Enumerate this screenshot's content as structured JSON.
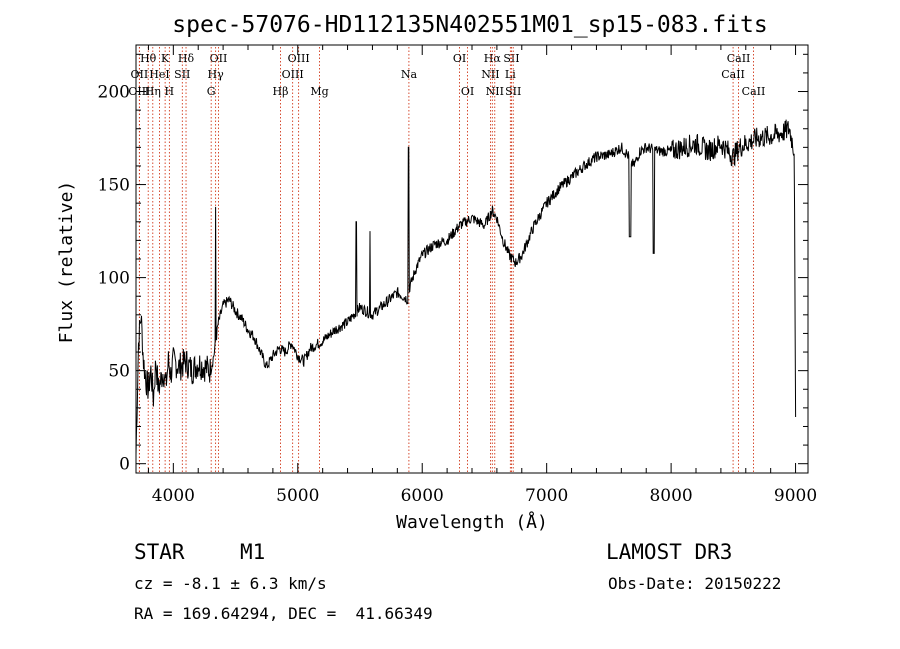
{
  "chart_data": {
    "type": "line",
    "title": "spec-57076-HD112135N402551M01_sp15-083.fits",
    "xlabel": "Wavelength (Å)",
    "ylabel": "Flux (relative)",
    "xlim": [
      3700,
      9100
    ],
    "ylim": [
      -5,
      225
    ],
    "x_ticks": [
      4000,
      5000,
      6000,
      7000,
      8000,
      9000
    ],
    "y_ticks": [
      0,
      50,
      100,
      150,
      200
    ],
    "grid": false,
    "series": [
      {
        "name": "spectrum",
        "x": [
          3700,
          3720,
          3740,
          3760,
          3780,
          3800,
          3820,
          3840,
          3860,
          3880,
          3900,
          3920,
          3940,
          3960,
          3980,
          4000,
          4050,
          4100,
          4150,
          4200,
          4250,
          4300,
          4330,
          4360,
          4380,
          4400,
          4450,
          4500,
          4550,
          4600,
          4650,
          4700,
          4750,
          4800,
          4850,
          4900,
          4950,
          5000,
          5050,
          5100,
          5150,
          5200,
          5300,
          5400,
          5450,
          5500,
          5600,
          5700,
          5800,
          5890,
          5900,
          5950,
          6000,
          6100,
          6200,
          6300,
          6400,
          6500,
          6563,
          6600,
          6650,
          6700,
          6750,
          6800,
          6900,
          7000,
          7100,
          7200,
          7300,
          7400,
          7500,
          7600,
          7650,
          7700,
          7750,
          7800,
          7900,
          8000,
          8100,
          8200,
          8300,
          8400,
          8500,
          8550,
          8600,
          8700,
          8800,
          8900,
          8950,
          8990,
          9000
        ],
        "values": [
          5,
          65,
          80,
          55,
          45,
          40,
          50,
          35,
          55,
          40,
          45,
          50,
          42,
          55,
          48,
          55,
          52,
          55,
          50,
          54,
          52,
          50,
          60,
          75,
          80,
          85,
          88,
          82,
          78,
          72,
          68,
          60,
          52,
          58,
          62,
          60,
          65,
          58,
          55,
          62,
          64,
          66,
          72,
          76,
          80,
          84,
          80,
          86,
          92,
          88,
          95,
          105,
          112,
          118,
          120,
          128,
          132,
          128,
          136,
          132,
          120,
          112,
          108,
          112,
          128,
          140,
          148,
          154,
          160,
          165,
          166,
          170,
          166,
          160,
          168,
          170,
          168,
          168,
          170,
          172,
          168,
          172,
          165,
          170,
          172,
          175,
          176,
          178,
          180,
          168,
          20
        ]
      }
    ],
    "emission_spikes": [
      {
        "x": 4340,
        "value": 138
      },
      {
        "x": 5470,
        "value": 130
      },
      {
        "x": 5580,
        "value": 125
      },
      {
        "x": 5890,
        "value": 170
      }
    ],
    "absorption_dips": [
      {
        "x": 7670,
        "value": 122
      },
      {
        "x": 7860,
        "value": 113
      }
    ],
    "spectral_lines": [
      {
        "label": "Hθ",
        "x": 3798,
        "row": 1
      },
      {
        "label": "OII",
        "x": 3727,
        "row": 2
      },
      {
        "label": "OIII",
        "x": 3727,
        "row": 3
      },
      {
        "label": "K",
        "x": 3934,
        "row": 1
      },
      {
        "label": "HeI",
        "x": 3889,
        "row": 2
      },
      {
        "label": "Hη",
        "x": 3835,
        "row": 3
      },
      {
        "label": "Hδ",
        "x": 4102,
        "row": 1
      },
      {
        "label": "SII",
        "x": 4072,
        "row": 2
      },
      {
        "label": "H",
        "x": 3968,
        "row": 3
      },
      {
        "label": "OII",
        "x": 4363,
        "row": 1
      },
      {
        "label": "Hγ",
        "x": 4340,
        "row": 2
      },
      {
        "label": "G",
        "x": 4304,
        "row": 3
      },
      {
        "label": "OIII",
        "x": 5007,
        "row": 1
      },
      {
        "label": "OIII",
        "x": 4959,
        "row": 2
      },
      {
        "label": "Hβ",
        "x": 4861,
        "row": 3
      },
      {
        "label": "Mg",
        "x": 5175,
        "row": 3
      },
      {
        "label": "Na",
        "x": 5893,
        "row": 2
      },
      {
        "label": "OI",
        "x": 6300,
        "row": 1
      },
      {
        "label": "OI",
        "x": 6364,
        "row": 3
      },
      {
        "label": "Hα",
        "x": 6563,
        "row": 1
      },
      {
        "label": "NII",
        "x": 6548,
        "row": 2
      },
      {
        "label": "NII",
        "x": 6583,
        "row": 3
      },
      {
        "label": "SII",
        "x": 6717,
        "row": 1
      },
      {
        "label": "Li",
        "x": 6708,
        "row": 2
      },
      {
        "label": "SII",
        "x": 6731,
        "row": 3
      },
      {
        "label": "CaII",
        "x": 8542,
        "row": 1
      },
      {
        "label": "CaII",
        "x": 8498,
        "row": 2
      },
      {
        "label": "CaII",
        "x": 8662,
        "row": 3
      }
    ]
  },
  "info": {
    "object_class": "STAR",
    "subclass": "M1",
    "survey": "LAMOST DR3",
    "cz": "cz = -8.1 ± 6.3 km/s",
    "obs_date": "Obs-Date: 20150222",
    "coords": "RA = 169.64294, DEC =  41.66349"
  },
  "colors": {
    "line_marker": "#cc2200",
    "spectrum": "#000000"
  }
}
